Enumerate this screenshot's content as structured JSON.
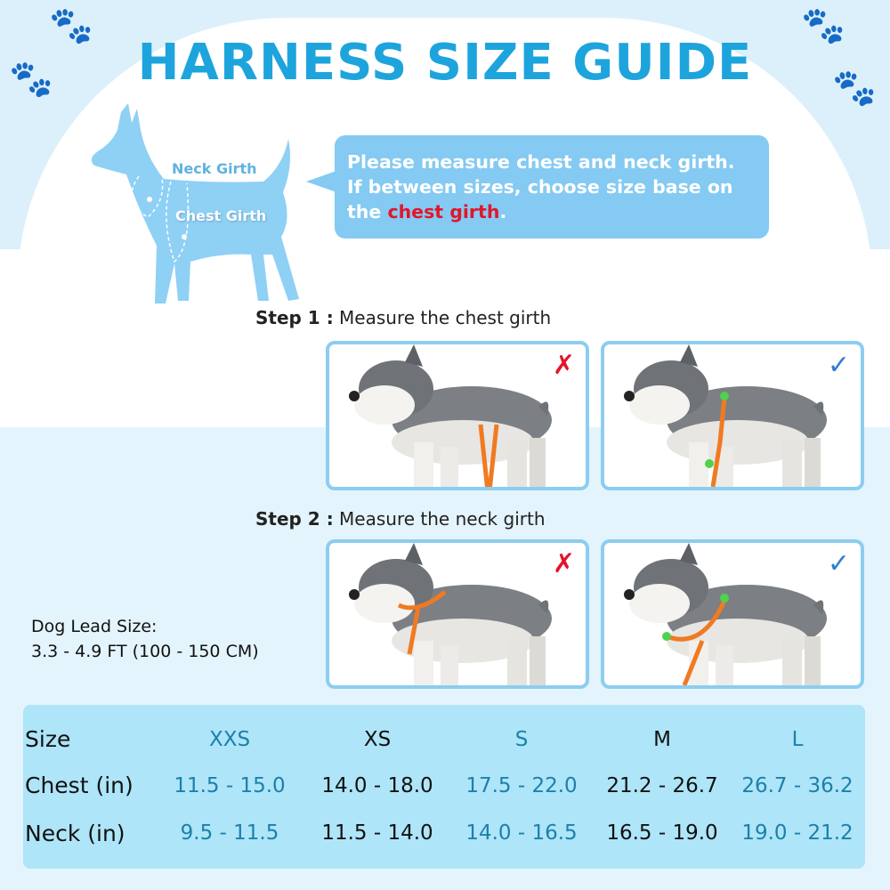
{
  "title": "HARNESS SIZE GUIDE",
  "diagram": {
    "neck_label": "Neck Girth",
    "chest_label": "Chest Girth"
  },
  "bubble": {
    "line1": "Please measure chest and neck girth.",
    "line2": "If between sizes, choose size base on",
    "line3_prefix": "the ",
    "line3_highlight": "chest girth",
    "line3_suffix": ".",
    "highlight_color": "#e3152a"
  },
  "steps": [
    {
      "label": "Step 1 :",
      "text": "Measure the chest girth",
      "wrong_icon": "red-x-icon",
      "right_icon": "blue-check-icon"
    },
    {
      "label": "Step 2 :",
      "text": "Measure the neck girth",
      "wrong_icon": "red-x-icon",
      "right_icon": "blue-check-icon"
    }
  ],
  "lead": {
    "label": "Dog Lead Size:",
    "value": "3.3 - 4.9 FT (100 - 150 CM)"
  },
  "table": {
    "row_labels": [
      "Size",
      "Chest (in)",
      "Neck (in)"
    ],
    "sizes": [
      "XXS",
      "XS",
      "S",
      "M",
      "L"
    ],
    "chest": [
      "11.5 - 15.0",
      "14.0 - 18.0",
      "17.5 - 22.0",
      "21.2 - 26.7",
      "26.7 - 36.2"
    ],
    "neck": [
      "9.5 - 11.5",
      "11.5 - 14.0",
      "14.0 - 16.5",
      "16.5 - 19.0",
      "19.0 - 21.2"
    ]
  },
  "colors": {
    "accent": "#1ea4dc",
    "table_bg": "#aee5f8",
    "table_blue_text": "#1d80aa",
    "strap": "#f07a22",
    "marker": "#4fd24f"
  }
}
